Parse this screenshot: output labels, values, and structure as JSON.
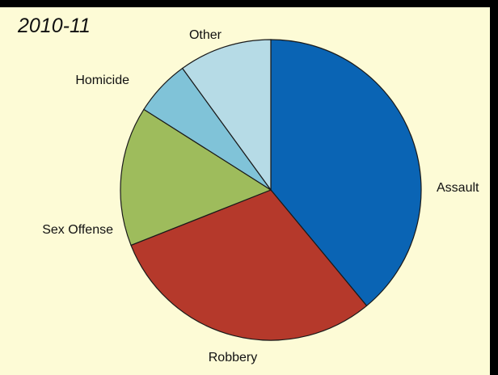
{
  "title": "2010-11",
  "chart_data": {
    "type": "pie",
    "title": "2010-11",
    "start_angle_deg": 0,
    "direction": "clockwise",
    "slices": [
      {
        "label": "Assault",
        "value": 39,
        "color": "#0a64b4"
      },
      {
        "label": "Robbery",
        "value": 30,
        "color": "#b5392b"
      },
      {
        "label": "Sex Offense",
        "value": 15,
        "color": "#9ebc5c"
      },
      {
        "label": "Homicide",
        "value": 6,
        "color": "#80c3d8"
      },
      {
        "label": "Other",
        "value": 10,
        "color": "#b6dbe6"
      }
    ]
  }
}
